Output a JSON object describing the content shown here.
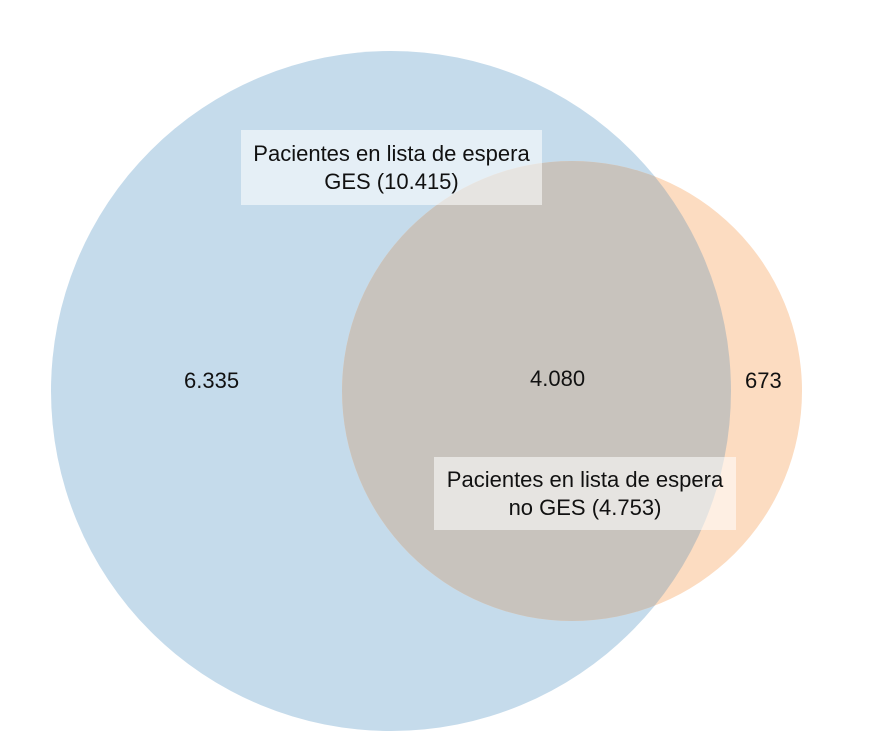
{
  "venn": {
    "sets": [
      {
        "key": "ges",
        "label": "Pacientes en lista de espera GES (10.415)",
        "color": "#c5dbeb"
      },
      {
        "key": "noges",
        "label": "Pacientes en lista de espera no GES (4.753)",
        "color": "#fcdcc1"
      }
    ],
    "overlap_color": "#c8c3bd",
    "counts": {
      "ges_only": "6.335",
      "both": "4.080",
      "noges_only": "673"
    }
  }
}
